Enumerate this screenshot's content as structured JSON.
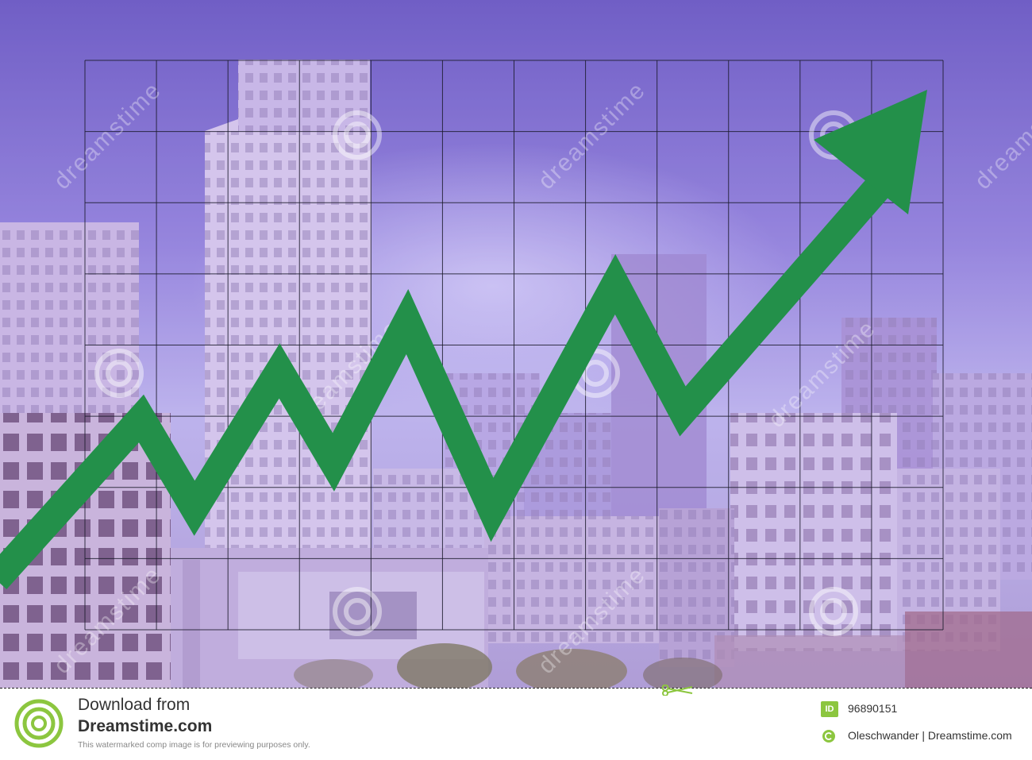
{
  "scene": {
    "description_icons": [
      "city-skyline",
      "green-up-arrow",
      "grid"
    ],
    "colors": {
      "sky_top": "#6f5fc4",
      "sky_mid": "#b8acf0",
      "arrow": "#23904a",
      "grid_line": "#1a1a2a"
    },
    "watermark_text": "dreamstime"
  },
  "footer": {
    "line1": "Download from",
    "line2": "Dreamstime.com",
    "line3": "This watermarked comp image is for previewing purposes only.",
    "id_badge": "ID",
    "id_value": "96890151",
    "author": "Oleschwander | Dreamstime.com"
  }
}
